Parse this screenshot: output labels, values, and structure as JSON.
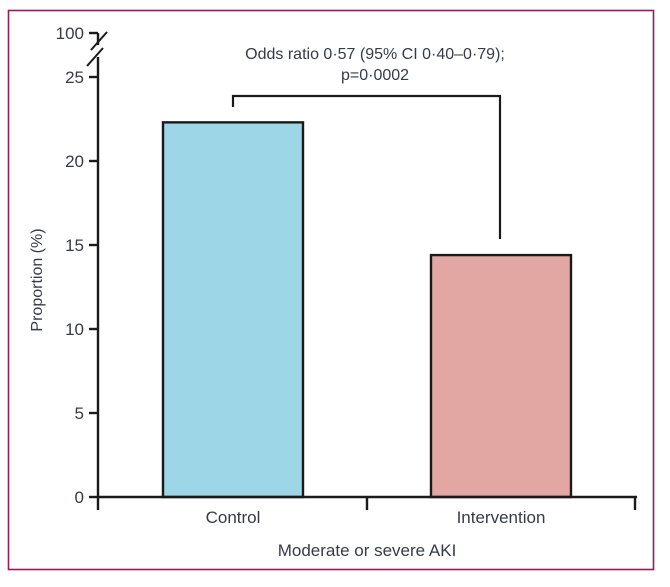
{
  "figure": {
    "border_color": "#971B56",
    "axis_color": "#1A1A1A",
    "text_color": "#373B46",
    "background": "#ffffff"
  },
  "chart_data": {
    "type": "bar",
    "title": "",
    "categories": [
      "Control",
      "Intervention"
    ],
    "values": [
      22.3,
      14.4
    ],
    "bar_colors": [
      "#9DD6E7",
      "#E2A7A2"
    ],
    "xlabel": "Moderate or severe AKI",
    "ylabel": "Proportion (%)",
    "y_ticks": [
      0,
      5,
      10,
      15,
      20,
      25,
      100
    ],
    "ylim_display": [
      0,
      25
    ],
    "y_axis_break": true,
    "grid": false,
    "legend": "none",
    "annotation": {
      "line1": "Odds ratio 0·57 (95% CI 0·40–0·79);",
      "line2": "p=0·0002"
    },
    "significance_bracket": {
      "from": "Control",
      "to": "Intervention"
    }
  }
}
